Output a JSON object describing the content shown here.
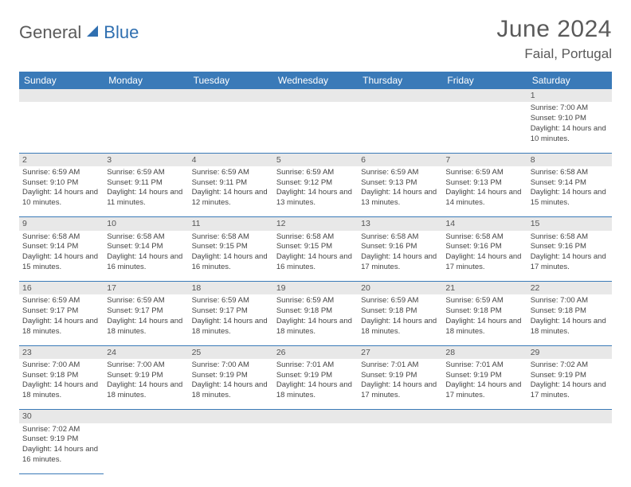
{
  "logo": {
    "part1": "General",
    "part2": "Blue"
  },
  "title": "June 2024",
  "location": "Faial, Portugal",
  "colors": {
    "header_bg": "#3a7ab8",
    "header_text": "#ffffff",
    "daynum_bg": "#e8e8e8",
    "border": "#3a7ab8",
    "text": "#444444",
    "logo_gray": "#5a5a5a",
    "logo_blue": "#2f6fb0"
  },
  "weekdays": [
    "Sunday",
    "Monday",
    "Tuesday",
    "Wednesday",
    "Thursday",
    "Friday",
    "Saturday"
  ],
  "weeks": [
    {
      "nums": [
        "",
        "",
        "",
        "",
        "",
        "",
        "1"
      ],
      "cells": [
        "",
        "",
        "",
        "",
        "",
        "",
        "Sunrise: 7:00 AM\nSunset: 9:10 PM\nDaylight: 14 hours and 10 minutes."
      ]
    },
    {
      "nums": [
        "2",
        "3",
        "4",
        "5",
        "6",
        "7",
        "8"
      ],
      "cells": [
        "Sunrise: 6:59 AM\nSunset: 9:10 PM\nDaylight: 14 hours and 10 minutes.",
        "Sunrise: 6:59 AM\nSunset: 9:11 PM\nDaylight: 14 hours and 11 minutes.",
        "Sunrise: 6:59 AM\nSunset: 9:11 PM\nDaylight: 14 hours and 12 minutes.",
        "Sunrise: 6:59 AM\nSunset: 9:12 PM\nDaylight: 14 hours and 13 minutes.",
        "Sunrise: 6:59 AM\nSunset: 9:13 PM\nDaylight: 14 hours and 13 minutes.",
        "Sunrise: 6:59 AM\nSunset: 9:13 PM\nDaylight: 14 hours and 14 minutes.",
        "Sunrise: 6:58 AM\nSunset: 9:14 PM\nDaylight: 14 hours and 15 minutes."
      ]
    },
    {
      "nums": [
        "9",
        "10",
        "11",
        "12",
        "13",
        "14",
        "15"
      ],
      "cells": [
        "Sunrise: 6:58 AM\nSunset: 9:14 PM\nDaylight: 14 hours and 15 minutes.",
        "Sunrise: 6:58 AM\nSunset: 9:14 PM\nDaylight: 14 hours and 16 minutes.",
        "Sunrise: 6:58 AM\nSunset: 9:15 PM\nDaylight: 14 hours and 16 minutes.",
        "Sunrise: 6:58 AM\nSunset: 9:15 PM\nDaylight: 14 hours and 16 minutes.",
        "Sunrise: 6:58 AM\nSunset: 9:16 PM\nDaylight: 14 hours and 17 minutes.",
        "Sunrise: 6:58 AM\nSunset: 9:16 PM\nDaylight: 14 hours and 17 minutes.",
        "Sunrise: 6:58 AM\nSunset: 9:16 PM\nDaylight: 14 hours and 17 minutes."
      ]
    },
    {
      "nums": [
        "16",
        "17",
        "18",
        "19",
        "20",
        "21",
        "22"
      ],
      "cells": [
        "Sunrise: 6:59 AM\nSunset: 9:17 PM\nDaylight: 14 hours and 18 minutes.",
        "Sunrise: 6:59 AM\nSunset: 9:17 PM\nDaylight: 14 hours and 18 minutes.",
        "Sunrise: 6:59 AM\nSunset: 9:17 PM\nDaylight: 14 hours and 18 minutes.",
        "Sunrise: 6:59 AM\nSunset: 9:18 PM\nDaylight: 14 hours and 18 minutes.",
        "Sunrise: 6:59 AM\nSunset: 9:18 PM\nDaylight: 14 hours and 18 minutes.",
        "Sunrise: 6:59 AM\nSunset: 9:18 PM\nDaylight: 14 hours and 18 minutes.",
        "Sunrise: 7:00 AM\nSunset: 9:18 PM\nDaylight: 14 hours and 18 minutes."
      ]
    },
    {
      "nums": [
        "23",
        "24",
        "25",
        "26",
        "27",
        "28",
        "29"
      ],
      "cells": [
        "Sunrise: 7:00 AM\nSunset: 9:18 PM\nDaylight: 14 hours and 18 minutes.",
        "Sunrise: 7:00 AM\nSunset: 9:19 PM\nDaylight: 14 hours and 18 minutes.",
        "Sunrise: 7:00 AM\nSunset: 9:19 PM\nDaylight: 14 hours and 18 minutes.",
        "Sunrise: 7:01 AM\nSunset: 9:19 PM\nDaylight: 14 hours and 18 minutes.",
        "Sunrise: 7:01 AM\nSunset: 9:19 PM\nDaylight: 14 hours and 17 minutes.",
        "Sunrise: 7:01 AM\nSunset: 9:19 PM\nDaylight: 14 hours and 17 minutes.",
        "Sunrise: 7:02 AM\nSunset: 9:19 PM\nDaylight: 14 hours and 17 minutes."
      ]
    },
    {
      "nums": [
        "30",
        "",
        "",
        "",
        "",
        "",
        ""
      ],
      "cells": [
        "Sunrise: 7:02 AM\nSunset: 9:19 PM\nDaylight: 14 hours and 16 minutes.",
        "",
        "",
        "",
        "",
        "",
        ""
      ]
    }
  ]
}
